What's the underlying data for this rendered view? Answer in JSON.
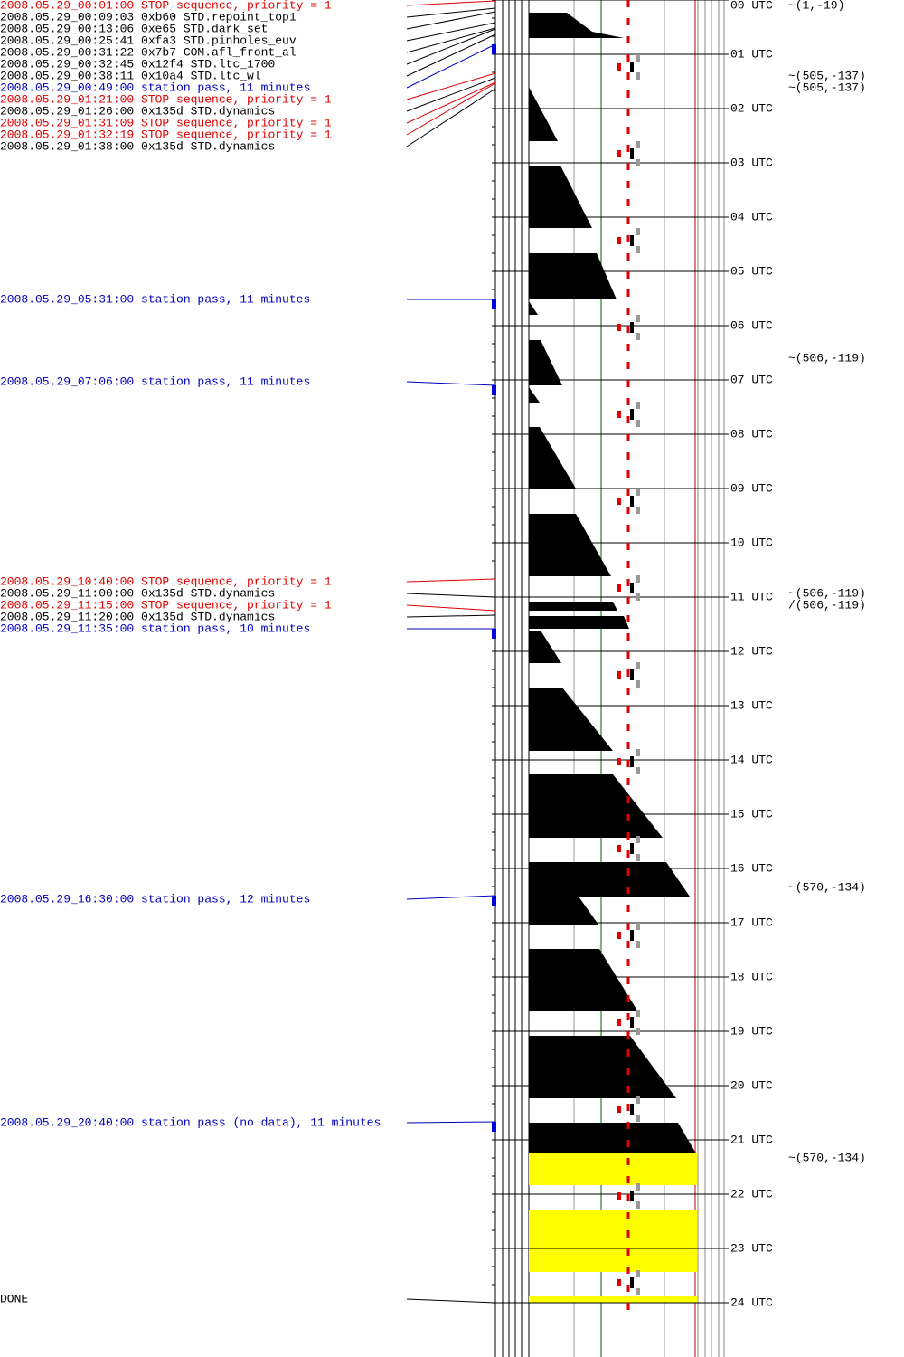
{
  "events": [
    {
      "text": "2008.05.29_00:01:00 STOP sequence, priority = 1",
      "color": "#e00000"
    },
    {
      "text": "2008.05.29_00:09:03  0xb60 STD.repoint_top1",
      "color": "#000000"
    },
    {
      "text": "2008.05.29_00:13:06  0xe65 STD.dark_set",
      "color": "#000000"
    },
    {
      "text": "2008.05.29_00:25:41  0xfa3 STD.pinholes_euv",
      "color": "#000000"
    },
    {
      "text": "2008.05.29_00:31:22  0x7b7 COM.afl_front_al",
      "color": "#000000"
    },
    {
      "text": "2008.05.29_00:32:45 0x12f4 STD.ltc_1700",
      "color": "#000000"
    },
    {
      "text": "2008.05.29_00:38:11 0x10a4 STD.ltc_wl",
      "color": "#000000"
    },
    {
      "text": "2008.05.29_00:49:00 station pass, 11 minutes",
      "color": "#0000c0"
    },
    {
      "text": "2008.05.29_01:21:00 STOP sequence, priority = 1",
      "color": "#e00000"
    },
    {
      "text": "2008.05.29_01:26:00 0x135d STD.dynamics",
      "color": "#000000"
    },
    {
      "text": "2008.05.29_01:31:09 STOP sequence, priority = 1",
      "color": "#e00000"
    },
    {
      "text": "2008.05.29_01:32:19 STOP sequence, priority = 1",
      "color": "#e00000"
    },
    {
      "text": "2008.05.29_01:38:00 0x135d STD.dynamics",
      "color": "#000000"
    },
    {
      "text": "2008.05.29_05:31:00 station pass, 11 minutes",
      "color": "#0000c0"
    },
    {
      "text": "2008.05.29_07:06:00 station pass, 11 minutes",
      "color": "#0000c0"
    },
    {
      "text": "2008.05.29_10:40:00 STOP sequence, priority = 1",
      "color": "#e00000"
    },
    {
      "text": "2008.05.29_11:00:00 0x135d STD.dynamics",
      "color": "#000000"
    },
    {
      "text": "2008.05.29_11:15:00 STOP sequence, priority = 1",
      "color": "#e00000"
    },
    {
      "text": "2008.05.29_11:20:00 0x135d STD.dynamics",
      "color": "#000000"
    },
    {
      "text": "2008.05.29_11:35:00 station pass, 10 minutes",
      "color": "#0000c0"
    },
    {
      "text": "2008.05.29_16:30:00 station pass, 12 minutes",
      "color": "#0000c0"
    },
    {
      "text": "2008.05.29_20:40:00 station pass (no data), 11 minutes",
      "color": "#0000c0"
    },
    {
      "text": "DONE",
      "color": "#000000"
    }
  ],
  "hours": [
    "00 UTC",
    "01 UTC",
    "02 UTC",
    "03 UTC",
    "04 UTC",
    "05 UTC",
    "06 UTC",
    "07 UTC",
    "08 UTC",
    "09 UTC",
    "10 UTC",
    "11 UTC",
    "12 UTC",
    "13 UTC",
    "14 UTC",
    "15 UTC",
    "16 UTC",
    "17 UTC",
    "18 UTC",
    "19 UTC",
    "20 UTC",
    "21 UTC",
    "22 UTC",
    "23 UTC",
    "24 UTC"
  ],
  "annotations": [
    "~(1,-19)",
    "~(505,-137)",
    "~(505,-137)",
    "~(506,-119)",
    "~(506,-119)",
    "/(506,-119)",
    "~(570,-134)",
    "~(570,-134)"
  ]
}
